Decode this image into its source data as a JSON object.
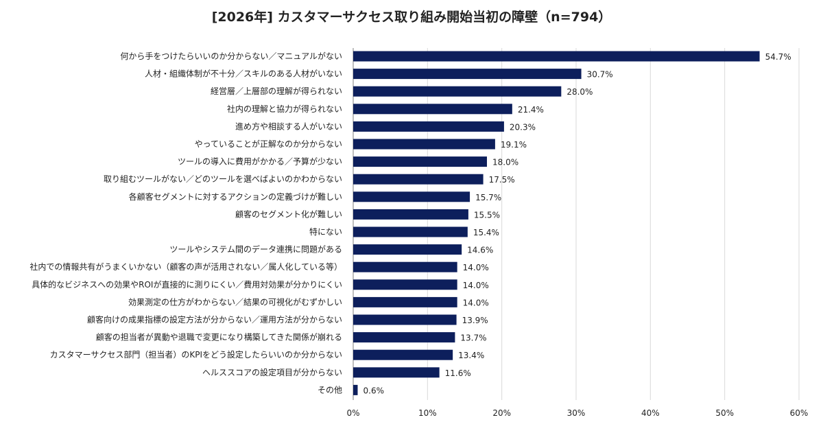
{
  "chart_data": {
    "type": "bar",
    "orientation": "horizontal",
    "title": "[2026年] カスタマーサクセス取り組み開始当初の障壁（n=794）",
    "categories": [
      "何から手をつけたらいいのか分からない／マニュアルがない",
      "人材・組織体制が不十分／スキルのある人材がいない",
      "経営層／上層部の理解が得られない",
      "社内の理解と協力が得られない",
      "進め方や相談する人がいない",
      "やっていることが正解なのか分からない",
      "ツールの導入に費用がかかる／予算が少ない",
      "取り組むツールがない／どのツールを選べばよいのかわからない",
      "各顧客セグメントに対するアクションの定義づけが難しい",
      "顧客のセグメント化が難しい",
      "特にない",
      "ツールやシステム間のデータ連携に問題がある",
      "社内での情報共有がうまくいかない（顧客の声が活用されない／属人化している等）",
      "具体的なビジネスへの効果やROIが直接的に測りにくい／費用対効果が分かりにくい",
      "効果測定の仕方がわからない／結果の可視化がむずかしい",
      "顧客向けの成果指標の設定方法が分からない／運用方法が分からない",
      "顧客の担当者が異動や退職で変更になり構築してきた関係が崩れる",
      "カスタマーサクセス部門（担当者）のKPIをどう設定したらいいのか分からない",
      "ヘルススコアの設定項目が分からない",
      "その他"
    ],
    "values": [
      54.7,
      30.7,
      28.0,
      21.4,
      20.3,
      19.1,
      18.0,
      17.5,
      15.7,
      15.5,
      15.4,
      14.6,
      14.0,
      14.0,
      14.0,
      13.9,
      13.7,
      13.4,
      11.6,
      0.6
    ],
    "value_labels": [
      "54.7%",
      "30.7%",
      "28.0%",
      "21.4%",
      "20.3%",
      "19.1%",
      "18.0%",
      "17.5%",
      "15.7%",
      "15.5%",
      "15.4%",
      "14.6%",
      "14.0%",
      "14.0%",
      "14.0%",
      "13.9%",
      "13.7%",
      "13.4%",
      "11.6%",
      "0.6%"
    ],
    "xlim": [
      0,
      60
    ],
    "xticks": [
      0,
      10,
      20,
      30,
      40,
      50,
      60
    ],
    "xtick_labels": [
      "0%",
      "10%",
      "20%",
      "30%",
      "40%",
      "50%",
      "60%"
    ],
    "grid": true,
    "legend": "none",
    "colors": {
      "bar": "#0d1f5c",
      "grid": "#d9d9d9",
      "axis": "#7f7f7f"
    }
  }
}
